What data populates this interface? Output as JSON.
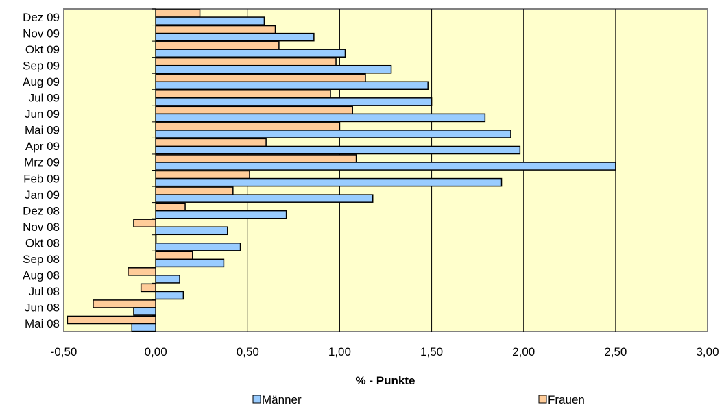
{
  "chart_data": {
    "type": "bar",
    "orientation": "horizontal",
    "categories": [
      "Dez 09",
      "Nov 09",
      "Okt 09",
      "Sep 09",
      "Aug 09",
      "Jul 09",
      "Jun 09",
      "Mai 09",
      "Apr 09",
      "Mrz 09",
      "Feb 09",
      "Jan 09",
      "Dez 08",
      "Nov 08",
      "Okt 08",
      "Sep 08",
      "Aug 08",
      "Jul 08",
      "Jun 08",
      "Mai 08"
    ],
    "series": [
      {
        "name": "Frauen",
        "color": "#FFCC99",
        "values": [
          0.24,
          0.65,
          0.67,
          0.98,
          1.14,
          0.95,
          1.07,
          1.0,
          0.6,
          1.09,
          0.51,
          0.42,
          0.16,
          -0.12,
          0.0,
          0.2,
          -0.15,
          -0.08,
          -0.34,
          -0.48
        ]
      },
      {
        "name": "Männer",
        "color": "#99CCFF",
        "values": [
          0.59,
          0.86,
          1.03,
          1.28,
          1.48,
          1.5,
          1.79,
          1.93,
          1.98,
          2.5,
          1.88,
          1.18,
          0.71,
          0.39,
          0.46,
          0.37,
          0.13,
          0.15,
          -0.12,
          -0.13
        ]
      }
    ],
    "xlabel": "% - Punkte",
    "xlim": [
      -0.5,
      3.0
    ],
    "xticks": [
      "-0,50",
      "0,00",
      "0,50",
      "1,00",
      "1,50",
      "2,00",
      "2,50",
      "3,00"
    ],
    "xtick_values": [
      -0.5,
      0,
      0.5,
      1.0,
      1.5,
      2.0,
      2.5,
      3.0
    ],
    "grid": "vertical",
    "plot_background": "#FFFFCC",
    "legend": {
      "placement": "bottom",
      "items": [
        "Männer",
        "Frauen"
      ]
    }
  }
}
